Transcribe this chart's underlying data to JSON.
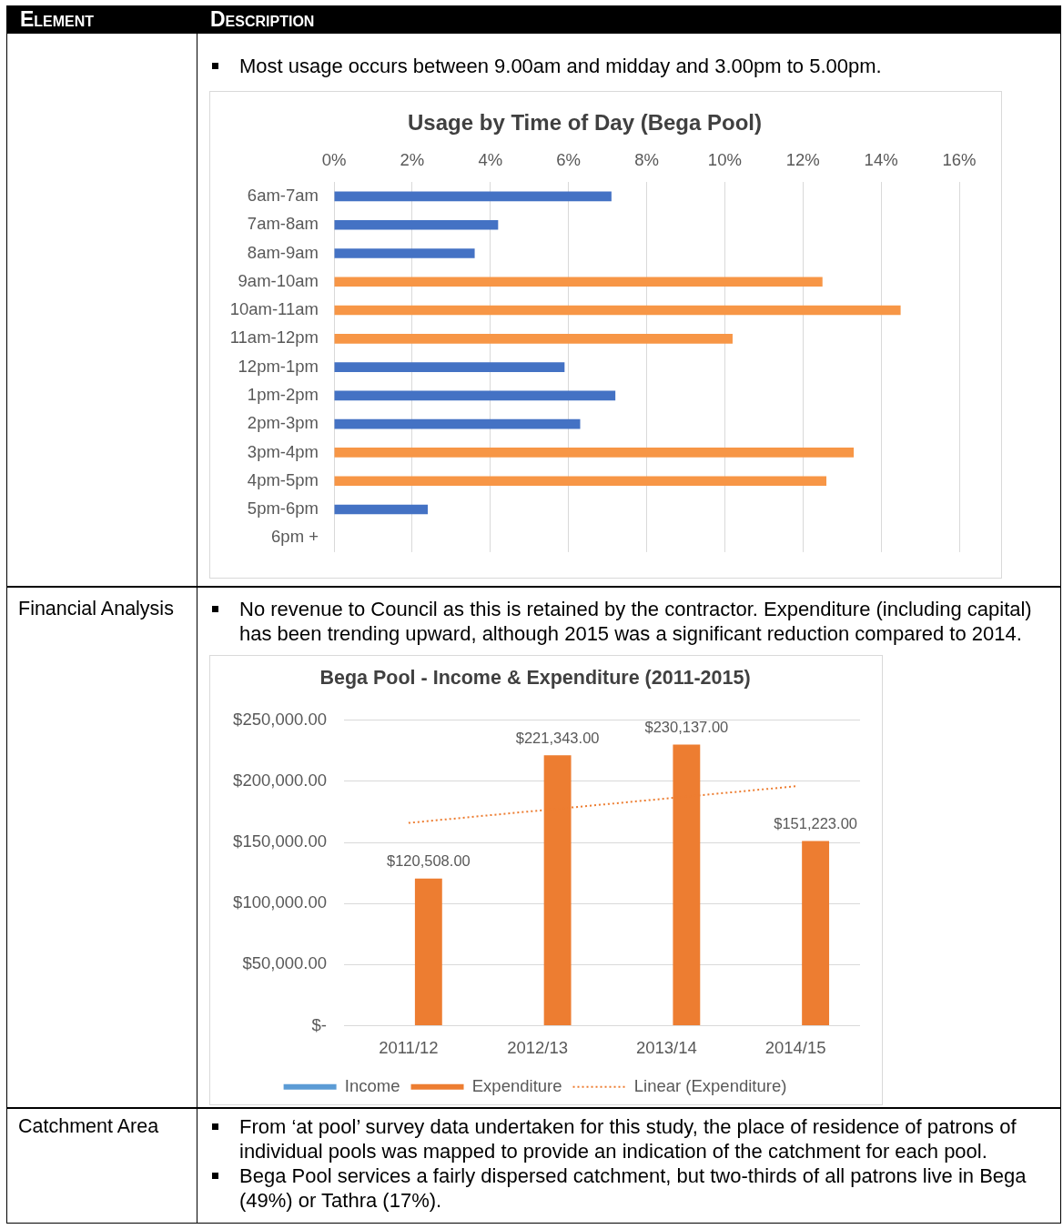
{
  "chart_data": [
    {
      "type": "bar",
      "orientation": "horizontal",
      "title": "Usage by Time of Day (Bega Pool)",
      "categories": [
        "6am-7am",
        "7am-8am",
        "8am-9am",
        "9am-10am",
        "10am-11am",
        "11am-12pm",
        "12pm-1pm",
        "1pm-2pm",
        "2pm-3pm",
        "3pm-4pm",
        "4pm-5pm",
        "5pm-6pm",
        "6pm +"
      ],
      "values": [
        7.1,
        4.2,
        3.6,
        12.5,
        14.5,
        10.2,
        5.9,
        7.2,
        6.3,
        13.3,
        12.6,
        2.4,
        null
      ],
      "colors": [
        "#4472c4",
        "#4472c4",
        "#4472c4",
        "#f79646",
        "#f79646",
        "#f79646",
        "#4472c4",
        "#4472c4",
        "#4472c4",
        "#f79646",
        "#f79646",
        "#4472c4",
        "#4472c4"
      ],
      "xlim": [
        0,
        16
      ],
      "xticks": [
        {
          "value": 0,
          "label": "0%"
        },
        {
          "value": 2,
          "label": "2%"
        },
        {
          "value": 4,
          "label": "4%"
        },
        {
          "value": 6,
          "label": "6%"
        },
        {
          "value": 8,
          "label": "8%"
        },
        {
          "value": 10,
          "label": "10%"
        },
        {
          "value": 12,
          "label": "12%"
        },
        {
          "value": 14,
          "label": "14%"
        },
        {
          "value": 16,
          "label": "16%"
        }
      ],
      "grid": "x",
      "legend": false,
      "annotations": [
        "Element",
        "Description",
        "Most usage occurs between 9.00am and midday and 3.00pm to 5.00pm."
      ]
    },
    {
      "type": "bar",
      "title": "Bega Pool - Income & Expenditure (2011-2015)",
      "categories": [
        "2011/12",
        "2012/13",
        "2013/14",
        "2014/15"
      ],
      "series": [
        {
          "name": "Income",
          "color": "#5b9bd5",
          "values": [
            null,
            null,
            null,
            null
          ]
        },
        {
          "name": "Expenditure",
          "color": "#ed7d31",
          "values": [
            120508,
            221343,
            230137,
            151223
          ],
          "value_labels": [
            "$120,508.00",
            "$221,343.00",
            "$230,137.00",
            "$151,223.00"
          ]
        },
        {
          "name": "Linear (Expenditure)",
          "type": "line",
          "color": "#ed7d31",
          "line_style": "dotted",
          "marker": "none",
          "values": [
            166000,
            176000,
            186000,
            196000
          ]
        }
      ],
      "ylim": [
        0,
        250000
      ],
      "yticks": [
        {
          "value": 0,
          "label": "$-"
        },
        {
          "value": 50000,
          "label": "$50,000.00"
        },
        {
          "value": 100000,
          "label": "$100,000.00"
        },
        {
          "value": 150000,
          "label": "$150,000.00"
        },
        {
          "value": 200000,
          "label": "$200,000.00"
        },
        {
          "value": 250000,
          "label": "$250,000.00"
        }
      ],
      "grid": "y",
      "legend": "bottom",
      "annotations": [
        "Financial Analysis",
        "No revenue to Council as this is retained by the contractor. Expenditure (including capital) has been trending upward, although 2015 was a significant reduction compared to 2014.",
        "Catchment Area",
        "From ‘at pool’ survey data undertaken for this study, the place of residence of patrons of individual pools was mapped to provide an indication of the catchment for each pool.",
        "Bega Pool services a fairly dispersed catchment, but two-thirds of all patrons live in Bega (49%) or Tathra (17%)."
      ]
    }
  ]
}
